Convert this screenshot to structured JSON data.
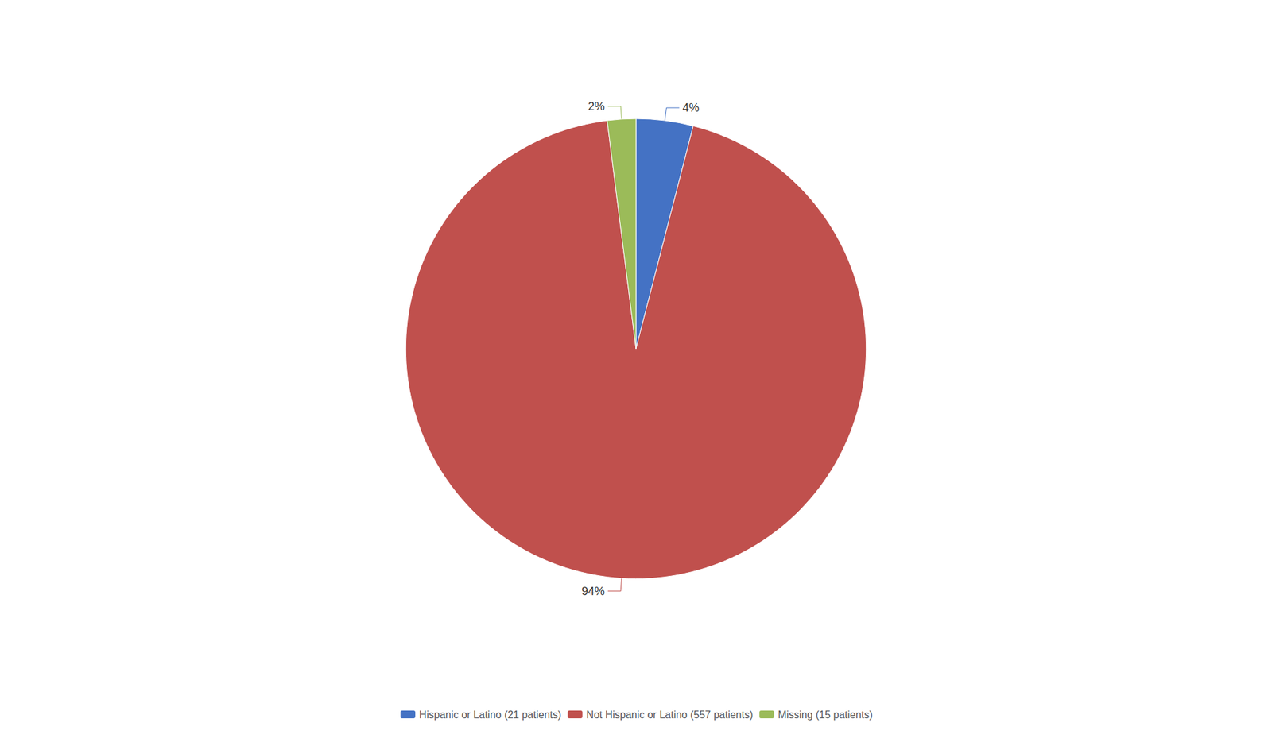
{
  "chart_data": {
    "type": "pie",
    "categories": [
      "Hispanic or Latino (21 patients)",
      "Not Hispanic or Latino (557 patients)",
      "Missing (15 patients)"
    ],
    "values": [
      4,
      94,
      2
    ],
    "value_labels": [
      "4%",
      "94%",
      "2%"
    ],
    "colors": [
      "#4472C4",
      "#C0504D",
      "#9BBB59"
    ],
    "data_labels": true,
    "legend": "bottom"
  }
}
